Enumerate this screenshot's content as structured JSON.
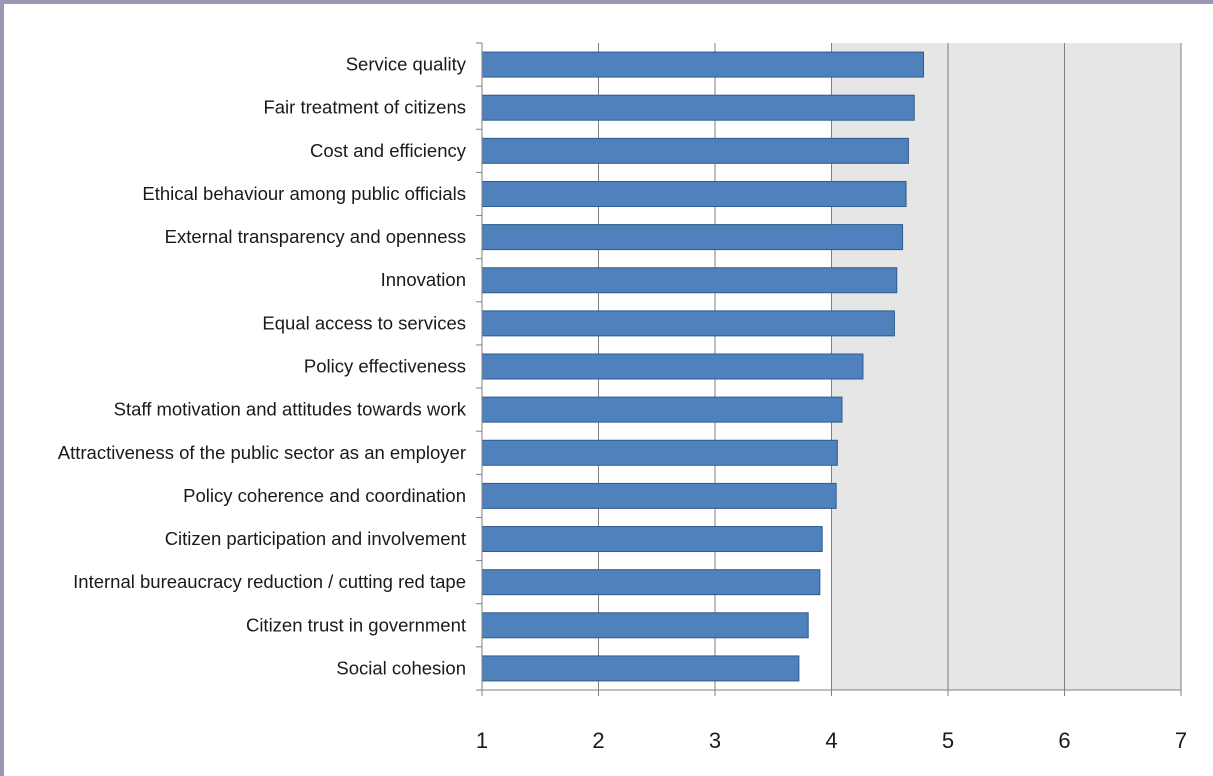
{
  "chart_data": {
    "type": "bar",
    "orientation": "horizontal",
    "categories": [
      "Service quality",
      "Fair treatment of citizens",
      "Cost and efficiency",
      "Ethical behaviour among public officials",
      "External transparency and openness",
      "Innovation",
      "Equal access to services",
      "Policy effectiveness",
      "Staff motivation and attitudes towards work",
      "Attractiveness of the public sector as an employer",
      "Policy coherence and coordination",
      "Citizen participation and involvement",
      "Internal bureaucracy reduction / cutting red tape",
      "Citizen trust in government",
      "Social cohesion"
    ],
    "values": [
      4.79,
      4.71,
      4.66,
      4.64,
      4.61,
      4.56,
      4.54,
      4.27,
      4.09,
      4.05,
      4.04,
      3.92,
      3.9,
      3.8,
      3.72
    ],
    "title": "",
    "xlabel": "",
    "ylabel": "",
    "xlim": [
      1,
      7
    ],
    "xticks": [
      "1",
      "2",
      "3",
      "4",
      "5",
      "6",
      "7"
    ],
    "grid": "vertical",
    "legend": "none",
    "colors": {
      "bar_fill": "#4f81bd",
      "bar_stroke": "#2f5b8f",
      "shaded_region": "#e6e6e6",
      "gridline": "#7f7f7f",
      "frame": "#9b98b4"
    },
    "shaded_from": 4
  }
}
